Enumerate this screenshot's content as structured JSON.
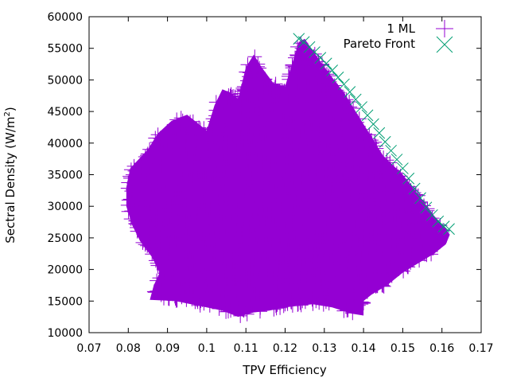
{
  "chart_data": {
    "type": "scatter",
    "xlabel": "TPV Efficiency",
    "ylabel": "Sectral Density (W/m",
    "ylabel_sup": "2",
    "ylabel_close": ")",
    "xlim": [
      0.07,
      0.17
    ],
    "ylim": [
      10000,
      60000
    ],
    "x_ticks": [
      "0.07",
      "0.08",
      "0.09",
      "0.1",
      "0.11",
      "0.12",
      "0.13",
      "0.14",
      "0.15",
      "0.16",
      "0.17"
    ],
    "x_tick_values": [
      0.07,
      0.08,
      0.09,
      0.1,
      0.11,
      0.12,
      0.13,
      0.14,
      0.15,
      0.16,
      0.17
    ],
    "y_ticks": [
      "10000",
      "15000",
      "20000",
      "25000",
      "30000",
      "35000",
      "40000",
      "45000",
      "50000",
      "55000",
      "60000"
    ],
    "y_tick_values": [
      10000,
      15000,
      20000,
      25000,
      30000,
      35000,
      40000,
      45000,
      50000,
      55000,
      60000
    ],
    "grid": false,
    "legend_position": "top-right",
    "series": [
      {
        "name": "1 ML",
        "marker": "plus",
        "color": "#9400d3",
        "cloud_outline": [
          [
            0.0795,
            33000
          ],
          [
            0.0805,
            36000
          ],
          [
            0.085,
            39000
          ],
          [
            0.0875,
            41500
          ],
          [
            0.091,
            43500
          ],
          [
            0.095,
            44500
          ],
          [
            0.098,
            43000
          ],
          [
            0.1,
            42000
          ],
          [
            0.102,
            46000
          ],
          [
            0.104,
            48500
          ],
          [
            0.106,
            48000
          ],
          [
            0.108,
            47000
          ],
          [
            0.11,
            52000
          ],
          [
            0.112,
            54000
          ],
          [
            0.114,
            52000
          ],
          [
            0.117,
            49500
          ],
          [
            0.12,
            49000
          ],
          [
            0.122,
            53000
          ],
          [
            0.1235,
            56000
          ],
          [
            0.125,
            56500
          ],
          [
            0.13,
            52000
          ],
          [
            0.135,
            48000
          ],
          [
            0.14,
            43000
          ],
          [
            0.145,
            38000
          ],
          [
            0.15,
            35000
          ],
          [
            0.155,
            31000
          ],
          [
            0.158,
            28500
          ],
          [
            0.161,
            26500
          ],
          [
            0.162,
            25500
          ],
          [
            0.161,
            24000
          ],
          [
            0.158,
            22500
          ],
          [
            0.154,
            21000
          ],
          [
            0.15,
            19500
          ],
          [
            0.146,
            17500
          ],
          [
            0.142,
            16000
          ],
          [
            0.14,
            15000
          ],
          [
            0.14,
            12700
          ],
          [
            0.137,
            13000
          ],
          [
            0.132,
            14000
          ],
          [
            0.127,
            14500
          ],
          [
            0.12,
            14000
          ],
          [
            0.116,
            13500
          ],
          [
            0.112,
            13200
          ],
          [
            0.108,
            12500
          ],
          [
            0.104,
            13500
          ],
          [
            0.1,
            14000
          ],
          [
            0.096,
            14500
          ],
          [
            0.092,
            15000
          ],
          [
            0.0855,
            15200
          ],
          [
            0.0865,
            17500
          ],
          [
            0.088,
            19500
          ],
          [
            0.086,
            22000
          ],
          [
            0.083,
            24500
          ],
          [
            0.081,
            27000
          ],
          [
            0.0795,
            30000
          ]
        ]
      },
      {
        "name": "Pareto Front",
        "marker": "cross",
        "color": "#009e73",
        "points": [
          [
            0.1235,
            56500
          ],
          [
            0.1248,
            56000
          ],
          [
            0.1262,
            55200
          ],
          [
            0.1275,
            54400
          ],
          [
            0.129,
            53500
          ],
          [
            0.1305,
            52600
          ],
          [
            0.132,
            51500
          ],
          [
            0.1335,
            50400
          ],
          [
            0.135,
            49300
          ],
          [
            0.1365,
            48100
          ],
          [
            0.138,
            46900
          ],
          [
            0.1395,
            45700
          ],
          [
            0.141,
            44400
          ],
          [
            0.1425,
            43000
          ],
          [
            0.144,
            41600
          ],
          [
            0.1455,
            40200
          ],
          [
            0.147,
            38800
          ],
          [
            0.1485,
            37400
          ],
          [
            0.15,
            36000
          ],
          [
            0.1515,
            34400
          ],
          [
            0.153,
            32800
          ],
          [
            0.1545,
            31300
          ],
          [
            0.156,
            29800
          ],
          [
            0.1575,
            28600
          ],
          [
            0.159,
            27600
          ],
          [
            0.1605,
            26800
          ],
          [
            0.1618,
            26400
          ]
        ]
      }
    ]
  }
}
